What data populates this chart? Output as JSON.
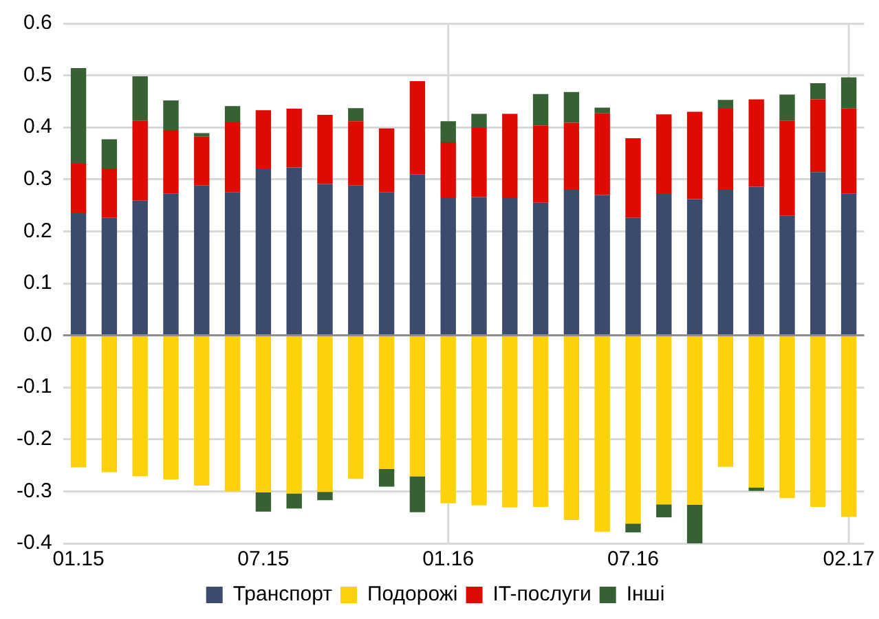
{
  "chart_data": {
    "type": "bar",
    "stacked": true,
    "categories": [
      "01.15",
      null,
      null,
      null,
      null,
      null,
      "07.15",
      null,
      null,
      null,
      null,
      null,
      "01.16",
      null,
      null,
      null,
      null,
      null,
      "07.16",
      null,
      null,
      null,
      null,
      null,
      null,
      "02.17"
    ],
    "series": [
      {
        "name": "Транспорт",
        "color": "#3c4a6e",
        "values": [
          0.235,
          0.226,
          0.259,
          0.273,
          0.288,
          0.275,
          0.321,
          0.323,
          0.291,
          0.288,
          0.275,
          0.31,
          0.264,
          0.266,
          0.264,
          0.255,
          0.28,
          0.27,
          0.226,
          0.272,
          0.262,
          0.28,
          0.286,
          0.23,
          0.314,
          0.273
        ]
      },
      {
        "name": "Подорожі",
        "color": "#fdd10c",
        "values": [
          -0.254,
          -0.263,
          -0.271,
          -0.277,
          -0.289,
          -0.3,
          -0.302,
          -0.304,
          -0.301,
          -0.276,
          -0.257,
          -0.271,
          -0.323,
          -0.327,
          -0.331,
          -0.33,
          -0.355,
          -0.378,
          -0.362,
          -0.325,
          -0.326,
          -0.253,
          -0.293,
          -0.313,
          -0.33,
          -0.349
        ]
      },
      {
        "name": "IT-послуги",
        "color": "#e00b00",
        "values": [
          0.095,
          0.095,
          0.154,
          0.122,
          0.094,
          0.136,
          0.112,
          0.113,
          0.133,
          0.124,
          0.123,
          0.179,
          0.107,
          0.133,
          0.162,
          0.149,
          0.129,
          0.157,
          0.153,
          0.153,
          0.168,
          0.156,
          0.168,
          0.183,
          0.14,
          0.164
        ]
      },
      {
        "name": "Інші",
        "color": "#386035",
        "values": [
          0.184,
          0.056,
          0.085,
          0.057,
          0.007,
          0.03,
          -0.037,
          -0.029,
          -0.016,
          0.025,
          -0.034,
          -0.069,
          0.041,
          0.027,
          null,
          0.06,
          0.059,
          0.011,
          -0.017,
          -0.025,
          -0.074,
          0.017,
          -0.006,
          0.05,
          0.031,
          0.059
        ]
      }
    ],
    "ylim": [
      -0.4,
      0.6
    ],
    "yticks": [
      {
        "value": -0.4,
        "label": "-0.4"
      },
      {
        "value": -0.3,
        "label": "-0.3"
      },
      {
        "value": -0.2,
        "label": "-0.2"
      },
      {
        "value": -0.1,
        "label": "-0.1"
      },
      {
        "value": 0,
        "label": "0.0"
      },
      {
        "value": 0.1,
        "label": "0.1"
      },
      {
        "value": 0.2,
        "label": "0.2"
      },
      {
        "value": 0.3,
        "label": "0.3"
      },
      {
        "value": 0.4,
        "label": "0.4"
      },
      {
        "value": 0.5,
        "label": "0.5"
      },
      {
        "value": 0.6,
        "label": "0.6"
      }
    ],
    "grid": "y",
    "legend": "bottom",
    "ref_lines": [
      {
        "axis": "x",
        "value": "01.16",
        "color": "#d9d9d9"
      },
      {
        "axis": "x",
        "value": "02.17",
        "color": "#d9d9d9"
      }
    ]
  }
}
